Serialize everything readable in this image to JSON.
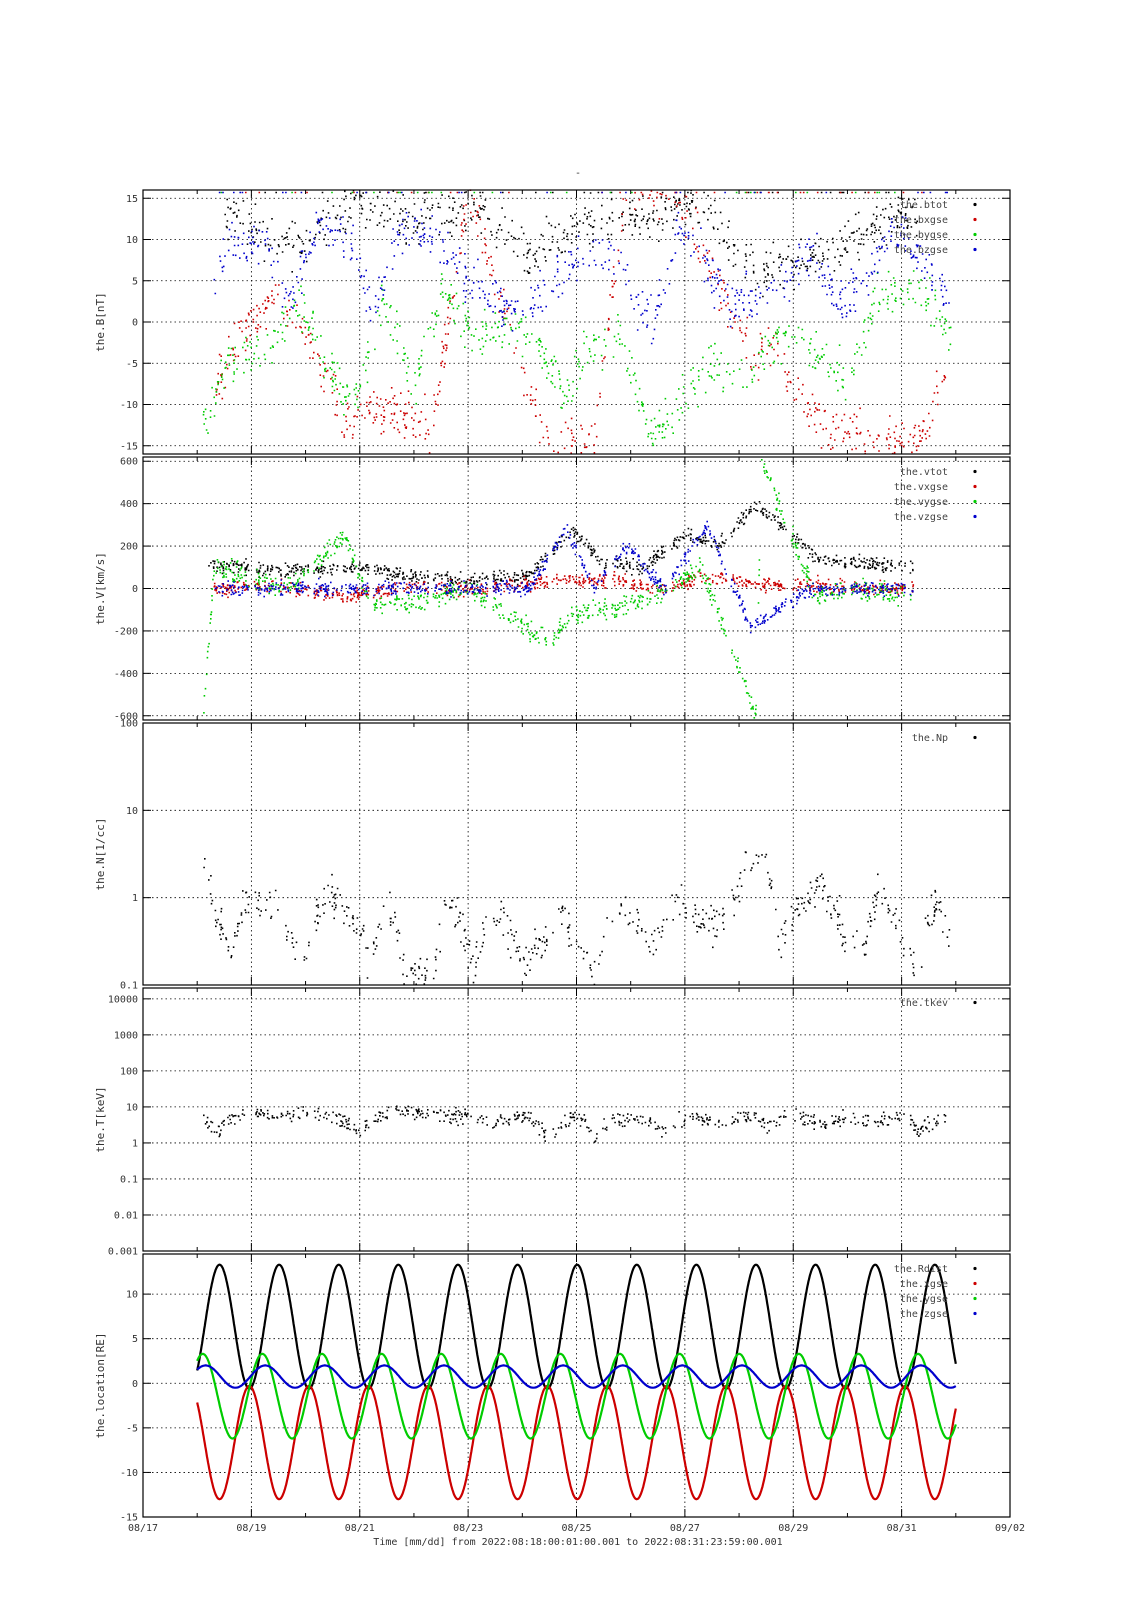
{
  "page": {
    "title_mark": "-"
  },
  "xaxis": {
    "title": "Time [mm/dd]  from 2022:08:18:00:01:00.001  to  2022:08:31:23:59:00.001",
    "range": [
      "2022-08-17",
      "2022-09-02"
    ],
    "ticks": [
      "08/17",
      "08/19",
      "08/21",
      "08/23",
      "08/25",
      "08/27",
      "08/29",
      "08/31",
      "09/02"
    ],
    "data_range": [
      "2022-08-18T00:01",
      "2022-08-31T23:59"
    ]
  },
  "colors": {
    "black": "#000000",
    "red": "#cc0000",
    "green": "#00cc00",
    "blue": "#0000cc"
  },
  "chart_data": [
    {
      "type": "scatter",
      "ylabel": "the.B[nT]",
      "ylim": [
        -16,
        16
      ],
      "yticks": [
        "15",
        "10",
        "5",
        "0",
        "-5",
        "-10",
        "-15"
      ],
      "ytick_values": [
        15,
        10,
        5,
        0,
        -5,
        -10,
        -15
      ],
      "grid": true,
      "legend": "top-right",
      "series": [
        {
          "name": "the.btot",
          "color": "#000000",
          "values_approx": [
            [
              18.5,
              13
            ],
            [
              19.8,
              9
            ],
            [
              20.9,
              14
            ],
            [
              22.2,
              12
            ],
            [
              23.1,
              14
            ],
            [
              24.1,
              8
            ],
            [
              25.2,
              12
            ],
            [
              26.4,
              13
            ],
            [
              27.3,
              14
            ],
            [
              28.4,
              6
            ],
            [
              29.7,
              9
            ],
            [
              30.6,
              12
            ],
            [
              31.3,
              13
            ]
          ]
        },
        {
          "name": "the.bxgse",
          "color": "#cc0000",
          "values_approx": [
            [
              18.3,
              -8
            ],
            [
              18.8,
              -2
            ],
            [
              19.5,
              4
            ],
            [
              20.1,
              -3
            ],
            [
              20.7,
              -12
            ],
            [
              21.5,
              -10
            ],
            [
              22.3,
              -13
            ],
            [
              23.0,
              16
            ],
            [
              24.4,
              -15
            ],
            [
              25.3,
              -14
            ],
            [
              25.9,
              16
            ],
            [
              26.8,
              16
            ],
            [
              28.3,
              -5
            ],
            [
              28.6,
              -2
            ],
            [
              29.4,
              -12
            ],
            [
              30.7,
              -15
            ],
            [
              31.4,
              -14
            ],
            [
              31.8,
              -6
            ]
          ]
        },
        {
          "name": "the.bygse",
          "color": "#00cc00",
          "values_approx": [
            [
              18.1,
              -12
            ],
            [
              18.6,
              -5
            ],
            [
              19.3,
              -3
            ],
            [
              19.9,
              2
            ],
            [
              20.4,
              -6
            ],
            [
              20.9,
              -10
            ],
            [
              21.4,
              3
            ],
            [
              22.0,
              -8
            ],
            [
              22.5,
              4
            ],
            [
              23.2,
              -2
            ],
            [
              23.8,
              0
            ],
            [
              24.3,
              -3
            ],
            [
              24.8,
              -10
            ],
            [
              25.2,
              -3
            ],
            [
              25.8,
              -2
            ],
            [
              26.4,
              -14
            ],
            [
              26.9,
              -10
            ],
            [
              27.4,
              -5
            ],
            [
              27.9,
              -8
            ],
            [
              28.4,
              -4
            ],
            [
              28.9,
              -1
            ],
            [
              29.5,
              -4
            ],
            [
              30.0,
              -8
            ],
            [
              30.5,
              3
            ],
            [
              30.9,
              4
            ],
            [
              31.4,
              4
            ],
            [
              31.9,
              -2
            ]
          ]
        },
        {
          "name": "the.bzgse",
          "color": "#0000cc",
          "values_approx": [
            [
              18.3,
              6
            ],
            [
              18.6,
              10
            ],
            [
              19.3,
              9
            ],
            [
              19.7,
              2
            ],
            [
              20.2,
              12
            ],
            [
              20.8,
              10
            ],
            [
              21.2,
              1
            ],
            [
              21.8,
              12
            ],
            [
              22.4,
              10
            ],
            [
              23.0,
              5
            ],
            [
              23.4,
              3
            ],
            [
              23.9,
              2
            ],
            [
              24.4,
              4
            ],
            [
              24.9,
              7
            ],
            [
              25.4,
              9
            ],
            [
              25.9,
              5
            ],
            [
              26.4,
              0
            ],
            [
              26.9,
              12
            ],
            [
              27.3,
              8
            ],
            [
              27.8,
              2
            ],
            [
              28.4,
              3
            ],
            [
              28.9,
              5
            ],
            [
              29.3,
              9
            ],
            [
              29.8,
              2
            ],
            [
              30.4,
              6
            ],
            [
              30.9,
              12
            ],
            [
              31.4,
              7
            ],
            [
              31.9,
              3
            ]
          ]
        }
      ]
    },
    {
      "type": "scatter",
      "ylabel": "the.V[km/s]",
      "ylim": [
        -620,
        620
      ],
      "yticks": [
        "600",
        "400",
        "200",
        "0",
        "-200",
        "-400",
        "-600"
      ],
      "ytick_values": [
        600,
        400,
        200,
        0,
        -200,
        -400,
        -600
      ],
      "grid": true,
      "legend": "top-right",
      "series": [
        {
          "name": "the.vtot",
          "color": "#000000",
          "values_approx": [
            [
              18.2,
              120
            ],
            [
              19.5,
              80
            ],
            [
              20.8,
              100
            ],
            [
              22.0,
              60
            ],
            [
              23.0,
              40
            ],
            [
              24.1,
              60
            ],
            [
              24.9,
              280
            ],
            [
              25.5,
              120
            ],
            [
              26.2,
              100
            ],
            [
              27.0,
              260
            ],
            [
              27.6,
              200
            ],
            [
              28.3,
              400
            ],
            [
              29.4,
              150
            ],
            [
              30.2,
              120
            ],
            [
              31.2,
              100
            ]
          ]
        },
        {
          "name": "the.vxgse",
          "color": "#cc0000",
          "values_approx": [
            [
              18.3,
              0
            ],
            [
              19.5,
              10
            ],
            [
              20.7,
              -40
            ],
            [
              22.0,
              10
            ],
            [
              23.0,
              0
            ],
            [
              24.0,
              20
            ],
            [
              24.8,
              40
            ],
            [
              25.7,
              40
            ],
            [
              26.5,
              -10
            ],
            [
              27.4,
              60
            ],
            [
              28.3,
              20
            ],
            [
              29.3,
              20
            ],
            [
              30.2,
              0
            ],
            [
              31.2,
              0
            ]
          ]
        },
        {
          "name": "the.vygse",
          "color": "#00cc00",
          "values_approx": [
            [
              18.1,
              -600
            ],
            [
              18.3,
              100
            ],
            [
              19.6,
              0
            ],
            [
              20.7,
              240
            ],
            [
              21.2,
              -80
            ],
            [
              22.1,
              -60
            ],
            [
              23.0,
              0
            ],
            [
              24.5,
              -260
            ],
            [
              24.9,
              -120
            ],
            [
              25.7,
              -100
            ],
            [
              26.3,
              -50
            ],
            [
              27.3,
              100
            ],
            [
              28.3,
              -600
            ],
            [
              28.4,
              600
            ],
            [
              29.4,
              -40
            ],
            [
              30.2,
              0
            ],
            [
              31.2,
              -40
            ]
          ]
        },
        {
          "name": "the.vzgse",
          "color": "#0000cc",
          "values_approx": [
            [
              18.3,
              0
            ],
            [
              19.5,
              0
            ],
            [
              20.7,
              0
            ],
            [
              22.0,
              0
            ],
            [
              23.0,
              0
            ],
            [
              24.1,
              0
            ],
            [
              24.8,
              280
            ],
            [
              25.3,
              0
            ],
            [
              25.9,
              200
            ],
            [
              26.6,
              0
            ],
            [
              27.4,
              300
            ],
            [
              28.2,
              -180
            ],
            [
              29.3,
              0
            ],
            [
              30.2,
              0
            ],
            [
              31.2,
              0
            ]
          ]
        }
      ]
    },
    {
      "type": "scatter",
      "ylabel": "the.N[1/cc]",
      "yscale": "log",
      "ylim": [
        0.1,
        100
      ],
      "yticks": [
        "100",
        "10",
        "1",
        "0.1"
      ],
      "ytick_values": [
        100,
        10,
        1,
        0.1
      ],
      "grid": true,
      "legend": "top-right",
      "series": [
        {
          "name": "the.Np",
          "color": "#000000",
          "values_approx": [
            [
              18.1,
              2.5
            ],
            [
              18.3,
              0.6
            ],
            [
              18.6,
              0.2
            ],
            [
              18.9,
              0.8
            ],
            [
              19.3,
              0.9
            ],
            [
              19.7,
              0.3
            ],
            [
              20.0,
              0.2
            ],
            [
              20.4,
              1.1
            ],
            [
              20.6,
              0.8
            ],
            [
              20.9,
              0.5
            ],
            [
              21.2,
              0.12
            ],
            [
              21.5,
              0.9
            ],
            [
              21.8,
              0.12
            ],
            [
              22.4,
              0.15
            ],
            [
              22.6,
              0.9
            ],
            [
              23.1,
              0.1
            ],
            [
              23.4,
              0.7
            ],
            [
              24.0,
              0.2
            ],
            [
              24.4,
              0.3
            ],
            [
              24.6,
              0.8
            ],
            [
              25.1,
              0.2
            ],
            [
              25.4,
              0.15
            ],
            [
              25.7,
              0.8
            ],
            [
              26.0,
              0.6
            ],
            [
              26.4,
              0.25
            ],
            [
              26.8,
              0.9
            ],
            [
              27.1,
              0.6
            ],
            [
              27.6,
              0.5
            ],
            [
              27.9,
              0.9
            ],
            [
              28.3,
              3.5
            ],
            [
              28.7,
              0.3
            ],
            [
              29.1,
              0.7
            ],
            [
              29.5,
              1.3
            ],
            [
              29.9,
              0.4
            ],
            [
              30.3,
              0.25
            ],
            [
              30.6,
              1.2
            ],
            [
              31.0,
              0.3
            ],
            [
              31.3,
              0.1
            ],
            [
              31.6,
              0.9
            ],
            [
              31.9,
              0.3
            ]
          ]
        }
      ]
    },
    {
      "type": "scatter",
      "ylabel": "the.T[keV]",
      "yscale": "log",
      "ylim": [
        0.001,
        20000
      ],
      "yticks": [
        "10000",
        "1000",
        "100",
        "10",
        "1",
        "0.1",
        "0.01",
        "0.001"
      ],
      "ytick_values": [
        10000,
        1000,
        100,
        10,
        1,
        0.1,
        0.01,
        0.001
      ],
      "grid": true,
      "legend": "top-right",
      "series": [
        {
          "name": "the.tkev",
          "color": "#000000",
          "values_approx": [
            [
              18.1,
              5
            ],
            [
              18.4,
              2
            ],
            [
              18.8,
              6
            ],
            [
              19.5,
              6
            ],
            [
              20.0,
              7
            ],
            [
              20.5,
              5
            ],
            [
              21.0,
              2
            ],
            [
              21.4,
              6
            ],
            [
              22.0,
              7
            ],
            [
              22.5,
              6
            ],
            [
              23.0,
              6
            ],
            [
              23.5,
              4
            ],
            [
              24.1,
              5
            ],
            [
              24.5,
              1
            ],
            [
              25.0,
              6
            ],
            [
              25.3,
              1
            ],
            [
              25.6,
              4
            ],
            [
              26.2,
              5
            ],
            [
              26.6,
              2
            ],
            [
              27.1,
              6
            ],
            [
              27.6,
              3
            ],
            [
              28.1,
              6
            ],
            [
              28.5,
              3
            ],
            [
              29.0,
              6
            ],
            [
              29.5,
              3
            ],
            [
              30.0,
              5
            ],
            [
              30.5,
              4
            ],
            [
              31.0,
              6
            ],
            [
              31.3,
              2
            ],
            [
              31.8,
              5
            ]
          ]
        }
      ]
    },
    {
      "type": "line",
      "ylabel": "the.location[RE]",
      "ylim": [
        -15,
        14.5
      ],
      "yticks": [
        "10",
        "5",
        "0",
        "-5",
        "-10",
        "-15"
      ],
      "ytick_values": [
        10,
        5,
        0,
        -5,
        -10,
        -15
      ],
      "grid": true,
      "legend": "top-right",
      "period_days": 1.1,
      "series": [
        {
          "name": "the.Rdist",
          "color": "#000000",
          "max": 13.3,
          "min": -0.6
        },
        {
          "name": "the.xgse",
          "color": "#cc0000",
          "min": -13.0,
          "max": -0.3
        },
        {
          "name": "the.ygse",
          "color": "#00cc00",
          "range": [
            -6.2,
            3.3
          ]
        },
        {
          "name": "the.zgse",
          "color": "#0000cc",
          "range": [
            -0.5,
            2.0
          ]
        }
      ]
    }
  ]
}
